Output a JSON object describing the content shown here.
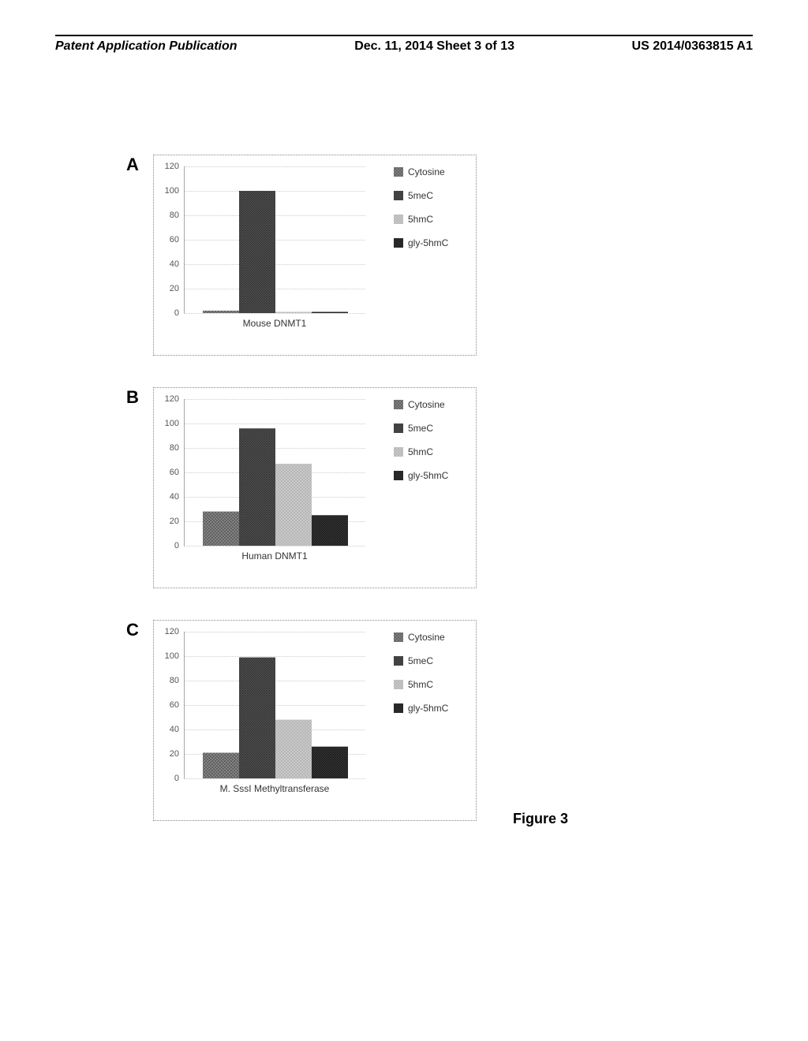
{
  "header": {
    "left": "Patent Application Publication",
    "center": "Dec. 11, 2014  Sheet 3 of 13",
    "right": "US 2014/0363815 A1"
  },
  "figure_caption": "Figure 3",
  "legend_items": [
    {
      "label": "Cytosine",
      "color": "#6b6b6b",
      "pattern": "crosshatch"
    },
    {
      "label": "5meC",
      "color": "#4a4a4a",
      "pattern": "crosshatch-dense"
    },
    {
      "label": "5hmC",
      "color": "#b5b5b5",
      "pattern": "crosshatch-light"
    },
    {
      "label": "gly-5hmC",
      "color": "#3a3a3a",
      "pattern": "crosshatch-dark"
    }
  ],
  "charts": [
    {
      "panel": "A",
      "x_label": "Mouse DNMT1",
      "ylim": [
        0,
        120
      ],
      "ytick_step": 20,
      "bars": [
        {
          "value": 2,
          "color": "#6b6b6b"
        },
        {
          "value": 100,
          "color": "#4a4a4a"
        },
        {
          "value": 1,
          "color": "#b5b5b5"
        },
        {
          "value": 1,
          "color": "#3a3a3a"
        }
      ]
    },
    {
      "panel": "B",
      "x_label": "Human DNMT1",
      "ylim": [
        0,
        120
      ],
      "ytick_step": 20,
      "bars": [
        {
          "value": 28,
          "color": "#6b6b6b"
        },
        {
          "value": 96,
          "color": "#4a4a4a"
        },
        {
          "value": 67,
          "color": "#b5b5b5"
        },
        {
          "value": 25,
          "color": "#3a3a3a"
        }
      ]
    },
    {
      "panel": "C",
      "x_label": "M. SssI Methyltransferase",
      "ylim": [
        0,
        120
      ],
      "ytick_step": 20,
      "bars": [
        {
          "value": 21,
          "color": "#6b6b6b"
        },
        {
          "value": 99,
          "color": "#4a4a4a"
        },
        {
          "value": 48,
          "color": "#b5b5b5"
        },
        {
          "value": 26,
          "color": "#3a3a3a"
        }
      ]
    }
  ]
}
